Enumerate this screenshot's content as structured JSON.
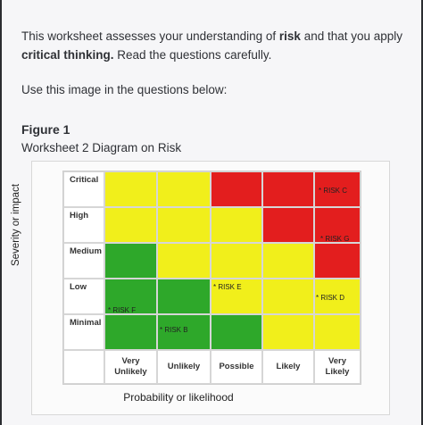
{
  "intro": {
    "part1": "This worksheet assesses your understanding of ",
    "bold1": "risk",
    "part2": " and that you apply ",
    "bold2": "critical thinking.",
    "part3": " Read the questions carefully."
  },
  "use_text": "Use this image in the questions below:",
  "figure": {
    "title": "Figure 1",
    "subtitle": "Worksheet 2 Diagram on Risk"
  },
  "diagram": {
    "y_axis_label": "Severity or impact",
    "x_axis_label": "Probability or likelihood",
    "rows": [
      "Critical",
      "High",
      "Medium",
      "Low",
      "Minimal"
    ],
    "columns": [
      [
        "Very",
        "Unlikely"
      ],
      [
        "Unlikely"
      ],
      [
        "Possible"
      ],
      [
        "Likely"
      ],
      [
        "Very",
        "Likely"
      ]
    ],
    "colors": {
      "red": "#e31e1e",
      "yellow": "#f1ef1b",
      "green": "#2ea82a"
    },
    "matrix": [
      [
        "yellow",
        "yellow",
        "red",
        "red",
        "red"
      ],
      [
        "yellow",
        "yellow",
        "yellow",
        "red",
        "red"
      ],
      [
        "green",
        "yellow",
        "yellow",
        "yellow",
        "red"
      ],
      [
        "green",
        "green",
        "yellow",
        "yellow",
        "yellow"
      ],
      [
        "green",
        "green",
        "green",
        "yellow",
        "yellow"
      ]
    ],
    "risks": [
      {
        "label": "* RISK C",
        "row": 0,
        "col": 4
      },
      {
        "label": "* RISK G",
        "row": 1,
        "col": 4
      },
      {
        "label": "* RISK E",
        "row": 3,
        "col": 2
      },
      {
        "label": "* RISK D",
        "row": 3,
        "col": 4
      },
      {
        "label": "* RISK F",
        "row": 3,
        "col": 0
      },
      {
        "label": "* RISK B",
        "row": 4,
        "col": 1
      }
    ]
  }
}
